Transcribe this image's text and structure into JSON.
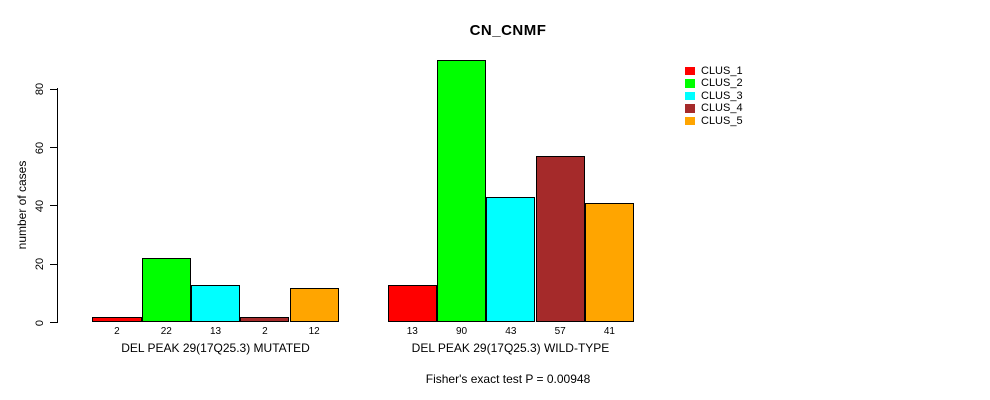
{
  "chart_data": {
    "type": "bar",
    "title": "CN_CNMF",
    "ylabel": "number of cases",
    "ylim": [
      0,
      90
    ],
    "yticks": [
      0,
      20,
      40,
      60,
      80
    ],
    "grid": false,
    "legend_position": "top-right-outside-plot",
    "categories": [
      "DEL PEAK 29(17Q25.3) MUTATED",
      "DEL PEAK 29(17Q25.3) WILD-TYPE"
    ],
    "series": [
      {
        "name": "CLUS_1",
        "color": "#FF0000",
        "values": [
          2,
          13
        ]
      },
      {
        "name": "CLUS_2",
        "color": "#00FF00",
        "values": [
          22,
          90
        ]
      },
      {
        "name": "CLUS_3",
        "color": "#00FFFF",
        "values": [
          13,
          43
        ]
      },
      {
        "name": "CLUS_4",
        "color": "#A52A2A",
        "values": [
          2,
          57
        ]
      },
      {
        "name": "CLUS_5",
        "color": "#FFA500",
        "values": [
          12,
          41
        ]
      }
    ],
    "bar_value_labels": [
      [
        2,
        22,
        13,
        2,
        12
      ],
      [
        13,
        90,
        43,
        57,
        41
      ]
    ],
    "annotation": "Fisher's exact test P = 0.00948"
  }
}
